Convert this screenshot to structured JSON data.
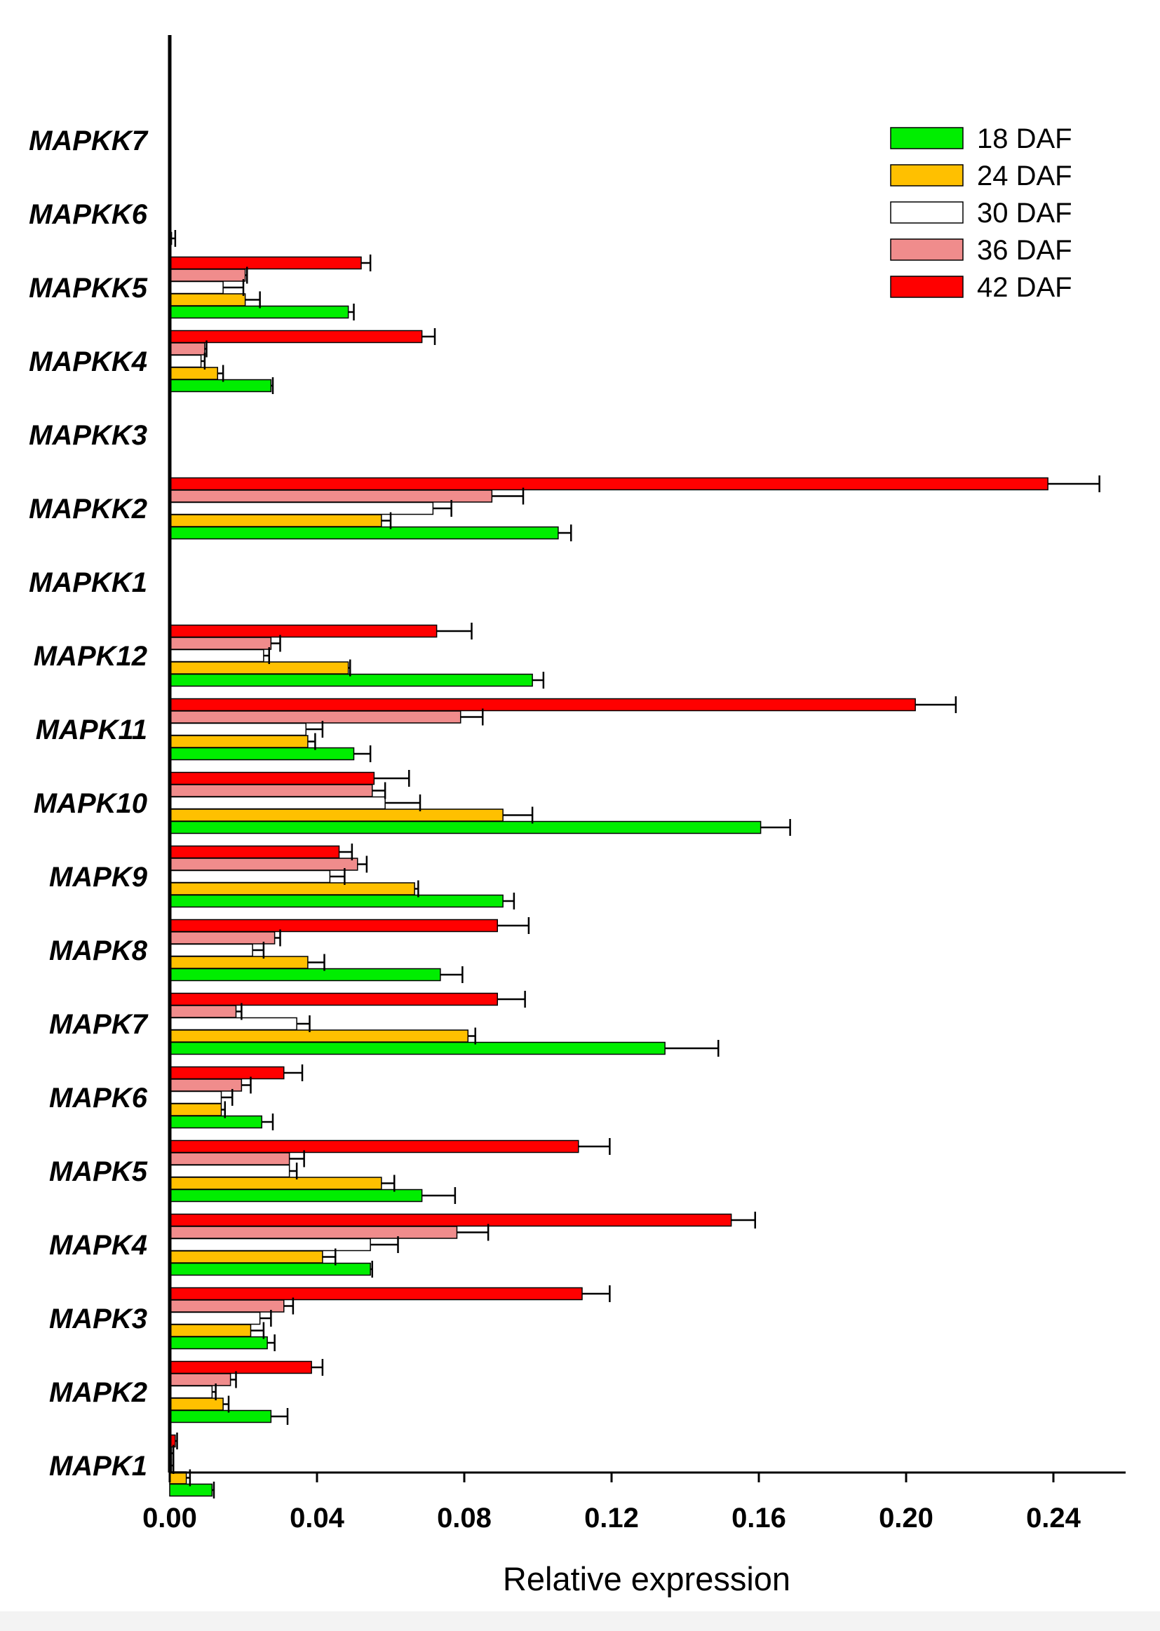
{
  "chart_data": {
    "type": "bar",
    "orientation": "horizontal",
    "xlabel": "Relative expression",
    "xlim": [
      0,
      0.26
    ],
    "xticks": [
      "0.00",
      "0.04",
      "0.08",
      "0.12",
      "0.16",
      "0.20",
      "0.24"
    ],
    "xtick_values": [
      0,
      0.04,
      0.08,
      0.12,
      0.16,
      0.2,
      0.24
    ],
    "legend_position": "top-right",
    "categories": [
      "MAPK1",
      "MAPK2",
      "MAPK3",
      "MAPK4",
      "MAPK5",
      "MAPK6",
      "MAPK7",
      "MAPK8",
      "MAPK9",
      "MAPK10",
      "MAPK11",
      "MAPK12",
      "MAPKK1",
      "MAPKK2",
      "MAPKK3",
      "MAPKK4",
      "MAPKK5",
      "MAPKK6",
      "MAPKK7"
    ],
    "series": [
      {
        "name": "18 DAF",
        "color": "#00ee00",
        "values": [
          0.0115,
          0.0275,
          0.0265,
          0.0545,
          0.0685,
          0.025,
          0.1345,
          0.0735,
          0.0905,
          0.1605,
          0.05,
          0.0985,
          0,
          0.1055,
          0,
          0.0275,
          0.0485,
          0.0005,
          0
        ],
        "errors": [
          0.0005,
          0.0045,
          0.002,
          0.0005,
          0.009,
          0.003,
          0.0145,
          0.006,
          0.003,
          0.008,
          0.0045,
          0.003,
          0,
          0.0035,
          0,
          0.0005,
          0.0015,
          0.001,
          0
        ]
      },
      {
        "name": "24 DAF",
        "color": "#ffc000",
        "values": [
          0.0045,
          0.0145,
          0.022,
          0.0415,
          0.0575,
          0.014,
          0.081,
          0.0375,
          0.0665,
          0.0905,
          0.0375,
          0.0485,
          0,
          0.0575,
          0,
          0.013,
          0.0205,
          0,
          0
        ],
        "errors": [
          0.001,
          0.0015,
          0.0035,
          0.0035,
          0.0035,
          0.001,
          0.002,
          0.0045,
          0.001,
          0.008,
          0.002,
          0.0005,
          0,
          0.0025,
          0,
          0.0015,
          0.004,
          0,
          0
        ]
      },
      {
        "name": "30 DAF",
        "color": "#ffffff",
        "values": [
          0.0005,
          0.0115,
          0.0245,
          0.0545,
          0.0325,
          0.014,
          0.0345,
          0.0225,
          0.0435,
          0.0585,
          0.037,
          0.0255,
          0,
          0.0715,
          0,
          0.0085,
          0.0145,
          0,
          0
        ],
        "errors": [
          0.0005,
          0.001,
          0.003,
          0.0075,
          0.002,
          0.003,
          0.0035,
          0.003,
          0.004,
          0.0095,
          0.0045,
          0.0015,
          0,
          0.005,
          0,
          0.001,
          0.0055,
          0,
          0
        ]
      },
      {
        "name": "36 DAF",
        "color": "#f08c8c",
        "values": [
          0.0005,
          0.0165,
          0.031,
          0.078,
          0.0325,
          0.0195,
          0.018,
          0.0285,
          0.051,
          0.055,
          0.079,
          0.0275,
          0,
          0.0875,
          0,
          0.0095,
          0.0205,
          0,
          0
        ],
        "errors": [
          0.0005,
          0.0015,
          0.0025,
          0.0085,
          0.004,
          0.0025,
          0.0015,
          0.0015,
          0.0025,
          0.0035,
          0.006,
          0.0025,
          0,
          0.0085,
          0,
          0.0005,
          0.0005,
          0,
          0
        ]
      },
      {
        "name": "42 DAF",
        "color": "#ff0000",
        "values": [
          0.0015,
          0.0385,
          0.112,
          0.1525,
          0.111,
          0.031,
          0.089,
          0.089,
          0.046,
          0.0555,
          0.2025,
          0.0725,
          0,
          0.2385,
          0,
          0.0685,
          0.052,
          0,
          0
        ],
        "errors": [
          0.0005,
          0.003,
          0.0075,
          0.0065,
          0.0085,
          0.005,
          0.0075,
          0.0085,
          0.0035,
          0.0095,
          0.011,
          0.0095,
          0,
          0.014,
          0,
          0.0035,
          0.0025,
          0,
          0
        ]
      }
    ]
  }
}
